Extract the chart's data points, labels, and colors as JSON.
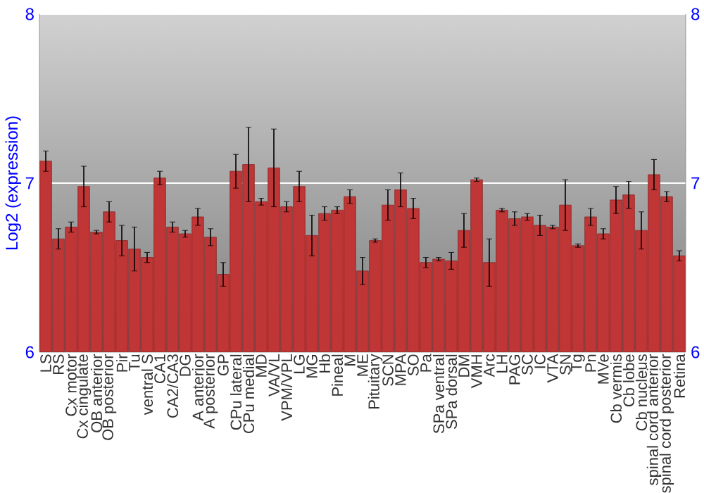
{
  "chart_data": {
    "type": "bar",
    "ylabel": "Log2 (expression)",
    "color": "#c03535",
    "categories": [
      "LS",
      "RS",
      "Cx motor",
      "Cx cingulate",
      "OB anterior",
      "OB posterior",
      "Pir",
      "Tu",
      "ventral S",
      "CA1",
      "CA2/CA3",
      "DG",
      "A anterior",
      "A posterior",
      "GP",
      "CPu lateral",
      "CPu medial",
      "MD",
      "VA/VL",
      "VPM/VPL",
      "LG",
      "MG",
      "Hb",
      "Pineal",
      "M",
      "ME",
      "Pituitary",
      "SCN",
      "MPA",
      "SO",
      "Pa",
      "SPa ventral",
      "SPa dorsal",
      "DM",
      "VMH",
      "Arc",
      "LH",
      "PAG",
      "SC",
      "IC",
      "VTA",
      "SN",
      "Tg",
      "Pn",
      "MVe",
      "Cb vermis",
      "Cb lobe",
      "Cb nucleus",
      "spinal cord anterior",
      "spinal cord posterior",
      "Retina"
    ],
    "values": [
      7.13,
      6.67,
      6.74,
      6.98,
      6.71,
      6.83,
      6.66,
      6.61,
      6.56,
      7.03,
      6.74,
      6.7,
      6.8,
      6.68,
      6.46,
      7.07,
      7.11,
      6.89,
      7.09,
      6.86,
      6.98,
      6.69,
      6.82,
      6.84,
      6.92,
      6.48,
      6.66,
      6.87,
      6.96,
      6.85,
      6.53,
      6.55,
      6.54,
      6.72,
      7.02,
      6.53,
      6.84,
      6.79,
      6.8,
      6.75,
      6.74,
      6.87,
      6.63,
      6.8,
      6.7,
      6.9,
      6.93,
      6.72,
      7.05,
      6.92,
      6.57
    ],
    "errors": [
      0.06,
      0.06,
      0.03,
      0.12,
      0.01,
      0.06,
      0.09,
      0.13,
      0.03,
      0.04,
      0.03,
      0.02,
      0.05,
      0.05,
      0.07,
      0.1,
      0.22,
      0.02,
      0.23,
      0.03,
      0.09,
      0.12,
      0.04,
      0.02,
      0.04,
      0.08,
      0.01,
      0.09,
      0.1,
      0.06,
      0.03,
      0.01,
      0.05,
      0.1,
      0.01,
      0.14,
      0.01,
      0.04,
      0.02,
      0.06,
      0.01,
      0.15,
      0.01,
      0.05,
      0.03,
      0.08,
      0.08,
      0.11,
      0.09,
      0.03,
      0.03
    ],
    "ylim": [
      6,
      8
    ],
    "yticks": [
      6,
      7,
      8
    ],
    "y2lim": [
      6,
      8
    ],
    "y2ticks": [
      6,
      7,
      8
    ],
    "grid": "y"
  }
}
